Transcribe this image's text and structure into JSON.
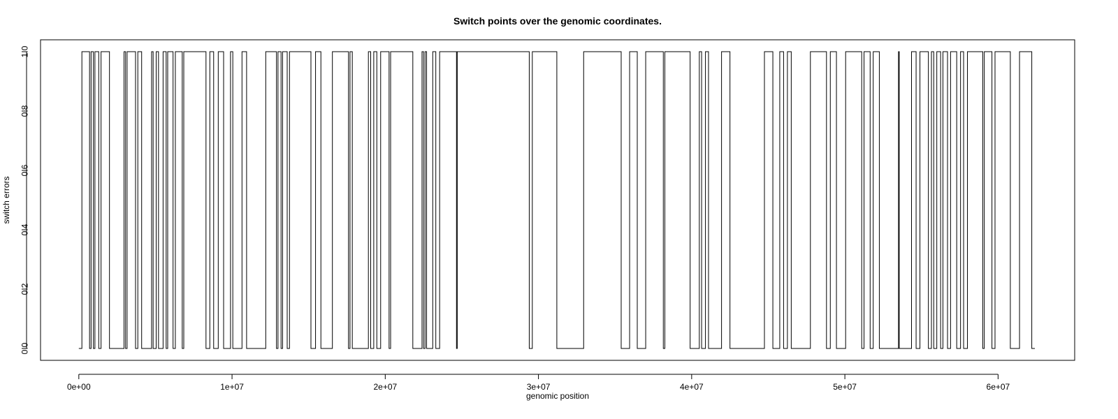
{
  "chart_data": {
    "type": "line",
    "title": "Switch points over the genomic coordinates.",
    "xlabel": "genomic position",
    "ylabel": "switch errors",
    "xlim": [
      -2500000,
      65000000
    ],
    "ylim": [
      -0.04,
      1.04
    ],
    "x_ticks": [
      0,
      10000000,
      20000000,
      30000000,
      40000000,
      50000000,
      60000000
    ],
    "x_tick_labels": [
      "0e+00",
      "1e+07",
      "2e+07",
      "3e+07",
      "4e+07",
      "5e+07",
      "6e+07"
    ],
    "y_ticks": [
      0,
      0.2,
      0.4,
      0.6,
      0.8,
      1.0
    ],
    "y_tick_labels": [
      "0.0",
      "0.2",
      "0.4",
      "0.6",
      "0.8",
      "1.0"
    ],
    "grid": false,
    "line_color": "#000000",
    "series": [
      {
        "style": "step",
        "start": [
          0,
          0
        ],
        "switch_x": [
          200000,
          700000,
          800000,
          950000,
          1050000,
          1300000,
          1450000,
          2000000,
          2950000,
          3050000,
          3150000,
          3700000,
          3850000,
          4100000,
          4750000,
          4850000,
          5050000,
          5200000,
          5500000,
          5700000,
          5800000,
          6150000,
          6300000,
          6750000,
          6850000,
          8300000,
          8550000,
          8800000,
          9100000,
          9450000,
          9900000,
          10050000,
          10650000,
          10950000,
          12200000,
          12900000,
          13000000,
          13200000,
          13300000,
          13600000,
          13750000,
          15150000,
          15450000,
          15800000,
          16550000,
          17600000,
          17700000,
          17850000,
          18900000,
          19050000,
          19250000,
          19450000,
          19700000,
          20250000,
          20350000,
          21800000,
          22400000,
          22500000,
          22600000,
          22700000,
          23100000,
          23300000,
          23550000,
          24650000,
          24700000,
          29400000,
          29600000,
          31200000,
          32950000,
          35400000,
          35950000,
          36450000,
          37000000,
          38150000,
          38250000,
          39900000,
          40500000,
          40650000,
          40900000,
          41100000,
          41950000,
          42500000,
          44750000,
          45300000,
          45750000,
          46000000,
          46250000,
          46500000,
          47750000,
          48800000,
          49050000,
          49450000,
          50050000,
          51100000,
          51250000,
          51650000,
          51850000,
          52250000,
          53500000,
          53550000,
          54350000,
          54650000,
          54900000,
          55450000,
          55650000,
          55800000,
          56000000,
          56250000,
          56400000,
          56700000,
          56900000,
          57300000,
          57550000,
          57750000,
          58000000,
          59000000,
          59100000,
          59600000,
          59800000,
          60800000,
          61400000,
          62200000
        ],
        "end_x": 62400000
      }
    ]
  }
}
